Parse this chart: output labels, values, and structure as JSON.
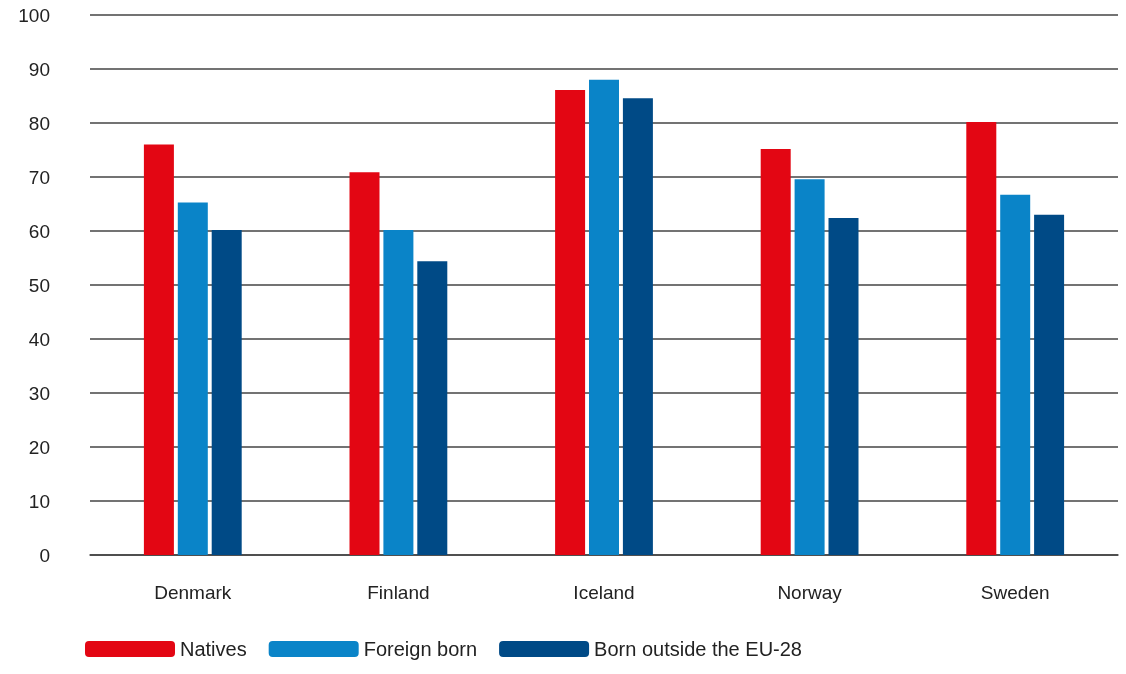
{
  "chart_data": {
    "type": "bar",
    "categories": [
      "Denmark",
      "Finland",
      "Iceland",
      "Norway",
      "Sweden"
    ],
    "series": [
      {
        "name": "Natives",
        "color": "#e30613",
        "values": [
          76,
          70.9,
          86.1,
          75.2,
          80.2
        ]
      },
      {
        "name": "Foreign born",
        "color": "#0a84c8",
        "values": [
          65.3,
          60.2,
          88,
          69.6,
          66.7
        ]
      },
      {
        "name": "Born outside the EU-28",
        "color": "#004a86",
        "values": [
          60.2,
          54.4,
          84.6,
          62.4,
          63
        ]
      }
    ],
    "ylim": [
      0,
      100
    ],
    "yticks": [
      0,
      10,
      20,
      30,
      40,
      50,
      60,
      70,
      80,
      90,
      100
    ],
    "grid": "y",
    "legend": "bottom left"
  }
}
